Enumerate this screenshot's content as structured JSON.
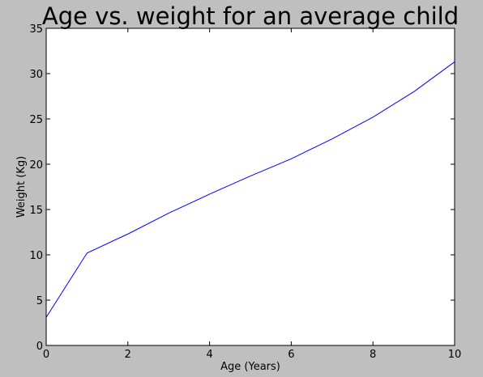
{
  "chart_data": {
    "type": "line",
    "title": "Age vs. weight for an average child",
    "xlabel": "Age (Years)",
    "ylabel": "Weight (Kg)",
    "xlim": [
      0,
      10
    ],
    "ylim": [
      0,
      35
    ],
    "xticks": [
      0,
      2,
      4,
      6,
      8,
      10
    ],
    "yticks": [
      0,
      5,
      10,
      15,
      20,
      25,
      30,
      35
    ],
    "grid": false,
    "series": [
      {
        "x": [
          0,
          1,
          2,
          3,
          4,
          5,
          6,
          7,
          8,
          9,
          10
        ],
        "y": [
          3.1,
          10.2,
          12.3,
          14.6,
          16.7,
          18.7,
          20.6,
          22.8,
          25.2,
          28.0,
          31.3
        ],
        "color": "#0000ff"
      }
    ]
  }
}
